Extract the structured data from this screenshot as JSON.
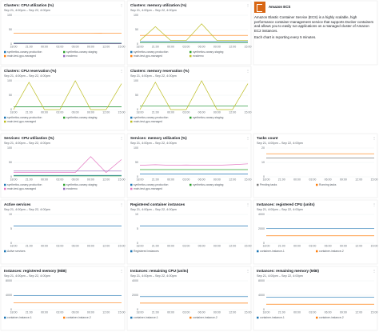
{
  "chart_data": [
    {
      "type": "line",
      "title": "Clusters: CPU utilization (%)",
      "subtitle": "Sep 21, 4:00pm – Sep 22, 4:00pm",
      "x": [
        "18:00",
        "21:00",
        "00:00",
        "03:00",
        "06:00",
        "09:00",
        "12:00",
        "15:00"
      ],
      "ylim": [
        0,
        100
      ],
      "yticks": [
        0,
        50,
        100
      ],
      "series": [
        {
          "name": "synthetics-canary-production",
          "color": "#1f77b4",
          "values": [
            3,
            3,
            3,
            3,
            3,
            3,
            3,
            3
          ]
        },
        {
          "name": "synthetics-canary-staging",
          "color": "#2ca02c",
          "values": [
            2,
            2,
            2,
            2,
            2,
            2,
            2,
            2
          ]
        },
        {
          "name": "main-test-gpu-managed",
          "color": "#ff7f0e",
          "values": [
            38,
            38,
            37,
            38,
            38,
            37,
            38,
            38
          ]
        },
        {
          "name": "ecsdemo",
          "color": "#9467bd",
          "values": [
            1,
            1,
            1,
            1,
            1,
            1,
            1,
            1
          ]
        }
      ]
    },
    {
      "type": "line",
      "title": "Clusters: memory utilization (%)",
      "subtitle": "Sep 21, 4:00pm – Sep 22, 4:00pm",
      "x": [
        "18:00",
        "21:00",
        "00:00",
        "03:00",
        "06:00",
        "09:00",
        "12:00",
        "15:00"
      ],
      "ylim": [
        0,
        100
      ],
      "yticks": [
        0,
        50,
        100
      ],
      "series": [
        {
          "name": "synthetics-canary-production",
          "color": "#1f77b4",
          "values": [
            8,
            8,
            8,
            8,
            8,
            8,
            8,
            8
          ]
        },
        {
          "name": "synthetics-canary-staging",
          "color": "#2ca02c",
          "values": [
            5,
            5,
            5,
            5,
            5,
            5,
            5,
            5
          ]
        },
        {
          "name": "main-test-gpu-managed",
          "color": "#ff7f0e",
          "values": [
            30,
            30,
            30,
            30,
            30,
            30,
            30,
            30
          ]
        },
        {
          "name": "ecsdemo",
          "color": "#bcbd22",
          "values": [
            12,
            60,
            12,
            12,
            70,
            12,
            12,
            12
          ]
        }
      ]
    },
    {
      "type": "line",
      "title": "Clusters: CPU reservation (%)",
      "subtitle": "Sep 21, 4:00pm – Sep 22, 4:00pm",
      "x": [
        "18:00",
        "21:00",
        "00:00",
        "03:00",
        "06:00",
        "09:00",
        "12:00",
        "15:00"
      ],
      "ylim": [
        0,
        100
      ],
      "yticks": [
        0,
        50,
        100
      ],
      "series": [
        {
          "name": "synthetics-canary-production",
          "color": "#1f77b4",
          "values": [
            10,
            10,
            10,
            10,
            10,
            10,
            10,
            10
          ]
        },
        {
          "name": "synthetics-canary-staging",
          "color": "#2ca02c",
          "values": [
            10,
            10,
            10,
            10,
            10,
            10,
            10,
            10
          ]
        },
        {
          "name": "main-test-gpu-managed",
          "color": "#bcbd22",
          "values": [
            0,
            95,
            0,
            0,
            100,
            0,
            0,
            90
          ]
        }
      ]
    },
    {
      "type": "line",
      "title": "Clusters: memory reservation (%)",
      "subtitle": "Sep 21, 4:00pm – Sep 22, 4:00pm",
      "x": [
        "18:00",
        "21:00",
        "00:00",
        "03:00",
        "06:00",
        "09:00",
        "12:00",
        "15:00"
      ],
      "ylim": [
        0,
        100
      ],
      "yticks": [
        0,
        50,
        100
      ],
      "series": [
        {
          "name": "synthetics-canary-production",
          "color": "#1f77b4",
          "values": [
            12,
            12,
            12,
            12,
            12,
            12,
            12,
            12
          ]
        },
        {
          "name": "synthetics-canary-staging",
          "color": "#2ca02c",
          "values": [
            12,
            12,
            12,
            12,
            12,
            12,
            12,
            12
          ]
        },
        {
          "name": "main-test-gpu-managed",
          "color": "#bcbd22",
          "values": [
            0,
            95,
            0,
            0,
            100,
            0,
            0,
            90
          ]
        }
      ]
    },
    {
      "type": "line",
      "title": "Services: CPU utilization (%)",
      "subtitle": "Sep 21, 4:00pm – Sep 22, 4:00pm",
      "x": [
        "18:00",
        "21:00",
        "00:00",
        "03:00",
        "06:00",
        "09:00",
        "12:00",
        "15:00"
      ],
      "ylim": [
        0,
        100
      ],
      "yticks": [
        0,
        50,
        100
      ],
      "series": [
        {
          "name": "synthetics-canary-production",
          "color": "#1f77b4",
          "values": [
            5,
            5,
            5,
            5,
            5,
            5,
            5,
            5
          ]
        },
        {
          "name": "synthetics-canary-staging",
          "color": "#2ca02c",
          "values": [
            3,
            3,
            3,
            3,
            3,
            3,
            3,
            3
          ]
        },
        {
          "name": "main-test-gpu-managed",
          "color": "#e377c2",
          "values": [
            15,
            15,
            15,
            15,
            15,
            70,
            15,
            60
          ]
        },
        {
          "name": "ecsdemo",
          "color": "#9467bd",
          "values": [
            20,
            20,
            20,
            20,
            20,
            20,
            20,
            20
          ]
        }
      ]
    },
    {
      "type": "line",
      "title": "Services: memory utilization (%)",
      "subtitle": "Sep 21, 4:00pm – Sep 22, 4:00pm",
      "x": [
        "18:00",
        "21:00",
        "00:00",
        "03:00",
        "06:00",
        "09:00",
        "12:00",
        "15:00"
      ],
      "ylim": [
        0,
        100
      ],
      "yticks": [
        0,
        50,
        100
      ],
      "series": [
        {
          "name": "synthetics-canary-production",
          "color": "#1f77b4",
          "values": [
            10,
            10,
            10,
            10,
            10,
            10,
            10,
            10
          ]
        },
        {
          "name": "synthetics-canary-staging",
          "color": "#2ca02c",
          "values": [
            25,
            25,
            25,
            25,
            25,
            25,
            25,
            25
          ]
        },
        {
          "name": "main-test-gpu-managed",
          "color": "#e377c2",
          "values": [
            40,
            42,
            40,
            41,
            40,
            40,
            42,
            45
          ]
        }
      ]
    },
    {
      "type": "line",
      "title": "Tasks count",
      "subtitle": "Sep 21, 4:00pm – Sep 22, 4:00pm",
      "x": [
        "18:00",
        "21:00",
        "00:00",
        "03:00",
        "06:00",
        "09:00",
        "12:00",
        "15:00"
      ],
      "ylim": [
        0,
        20
      ],
      "yticks": [
        0,
        10,
        20
      ],
      "series": [
        {
          "name": "Pending tasks",
          "color": "#7f7f7f",
          "values": [
            13,
            13,
            13,
            13,
            13,
            13,
            13,
            13
          ]
        },
        {
          "name": "Running tasks",
          "color": "#ff7f0e",
          "values": [
            16,
            16,
            16,
            16,
            16,
            16,
            16,
            16
          ]
        }
      ]
    },
    {
      "type": "line",
      "title": "Active services",
      "subtitle": "Sep 21, 4:00pm – Sep 22, 4:00pm",
      "x": [
        "18:00",
        "21:00",
        "00:00",
        "03:00",
        "06:00",
        "09:00",
        "12:00",
        "15:00"
      ],
      "ylim": [
        0,
        10
      ],
      "yticks": [
        0,
        5,
        10
      ],
      "series": [
        {
          "name": "Active services",
          "color": "#1f77b4",
          "values": [
            6,
            6,
            6,
            6,
            6,
            6,
            6,
            6
          ]
        }
      ]
    },
    {
      "type": "line",
      "title": "Registered container instances",
      "subtitle": "Sep 21, 4:00pm – Sep 22, 4:00pm",
      "x": [
        "18:00",
        "21:00",
        "00:00",
        "03:00",
        "06:00",
        "09:00",
        "12:00",
        "15:00"
      ],
      "ylim": [
        0,
        10
      ],
      "yticks": [
        0,
        5,
        10
      ],
      "series": [
        {
          "name": "Registered instances",
          "color": "#1f77b4",
          "values": [
            6,
            6,
            6,
            6,
            6,
            6,
            6,
            6
          ]
        }
      ]
    },
    {
      "type": "line",
      "title": "Instances: registered CPU (units)",
      "subtitle": "Sep 21, 4:00pm – Sep 22, 4:00pm",
      "x": [
        "18:00",
        "21:00",
        "00:00",
        "03:00",
        "06:00",
        "09:00",
        "12:00",
        "15:00"
      ],
      "ylim": [
        0,
        4000
      ],
      "yticks": [
        0,
        2000,
        4000
      ],
      "series": [
        {
          "name": "container-instance-1",
          "color": "#1f77b4",
          "values": [
            2048,
            2048,
            2048,
            2048,
            2048,
            2048,
            2048,
            2048
          ]
        },
        {
          "name": "container-instance-2",
          "color": "#ff7f0e",
          "values": [
            1024,
            1024,
            1024,
            1024,
            1024,
            1024,
            1024,
            1024
          ]
        }
      ]
    },
    {
      "type": "line",
      "title": "Instances: registered memory (MiB)",
      "subtitle": "Sep 21, 4:00pm – Sep 22, 4:00pm",
      "x": [
        "18:00",
        "21:00",
        "00:00",
        "03:00",
        "06:00",
        "09:00",
        "12:00",
        "15:00"
      ],
      "ylim": [
        0,
        8000
      ],
      "yticks": [
        0,
        4000,
        8000
      ],
      "series": [
        {
          "name": "container-instance-1",
          "color": "#1f77b4",
          "values": [
            3900,
            3900,
            3900,
            3900,
            3900,
            3900,
            3900,
            3900
          ]
        },
        {
          "name": "container-instance-2",
          "color": "#ff7f0e",
          "values": [
            1900,
            1900,
            1900,
            1900,
            1900,
            1900,
            1900,
            1900
          ]
        }
      ]
    },
    {
      "type": "line",
      "title": "Instances: remaining CPU (units)",
      "subtitle": "Sep 21, 4:00pm – Sep 22, 4:00pm",
      "x": [
        "18:00",
        "21:00",
        "00:00",
        "03:00",
        "06:00",
        "09:00",
        "12:00",
        "15:00"
      ],
      "ylim": [
        0,
        4000
      ],
      "yticks": [
        0,
        2000,
        4000
      ],
      "series": [
        {
          "name": "container-instance-1",
          "color": "#1f77b4",
          "values": [
            1800,
            1800,
            1800,
            1800,
            1800,
            1800,
            1800,
            1800
          ]
        },
        {
          "name": "container-instance-2",
          "color": "#ff7f0e",
          "values": [
            900,
            900,
            900,
            900,
            900,
            900,
            900,
            900
          ]
        }
      ]
    },
    {
      "type": "line",
      "title": "Instances: remaining memory (MiB)",
      "subtitle": "Sep 21, 4:00pm – Sep 22, 4:00pm",
      "x": [
        "18:00",
        "21:00",
        "00:00",
        "03:00",
        "06:00",
        "09:00",
        "12:00",
        "15:00"
      ],
      "ylim": [
        0,
        8000
      ],
      "yticks": [
        0,
        4000,
        8000
      ],
      "series": [
        {
          "name": "container-instance-1",
          "color": "#1f77b4",
          "values": [
            3400,
            3400,
            3400,
            3400,
            3400,
            3400,
            3400,
            3400
          ]
        },
        {
          "name": "container-instance-2",
          "color": "#ff7f0e",
          "values": [
            1500,
            1500,
            1500,
            1500,
            1500,
            1500,
            1500,
            1500
          ]
        }
      ]
    }
  ],
  "info": {
    "title": "Amazon ECS",
    "paragraphs": [
      "Amazon Elastic Container Service (ECS) is a highly scalable, high performance container management service that supports Docker containers and allows you to easily run applications on a managed cluster of Amazon EC2 instances.",
      "Each chart is reporting every 5 minutes."
    ]
  }
}
